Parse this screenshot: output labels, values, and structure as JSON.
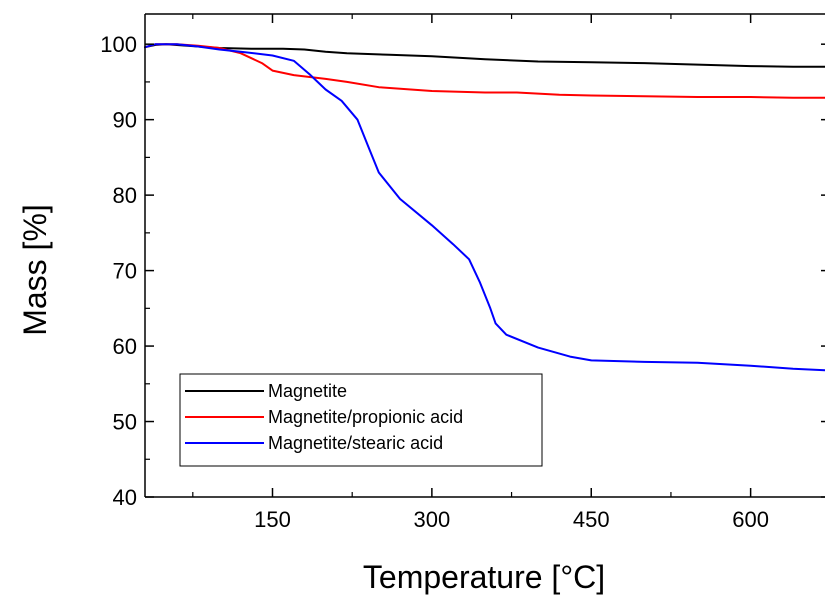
{
  "chart_data": {
    "type": "line",
    "xlabel": "Temperature [°C]",
    "ylabel": "Mass [%]",
    "xlim": [
      30,
      670
    ],
    "ylim": [
      40,
      104
    ],
    "xticks": [
      150,
      300,
      450,
      600
    ],
    "xtick_labels": [
      "150",
      "300",
      "450",
      "600"
    ],
    "yticks": [
      40,
      50,
      60,
      70,
      80,
      90,
      100
    ],
    "ytick_labels": [
      "40",
      "50",
      "60",
      "70",
      "80",
      "90",
      "100"
    ],
    "grid": false,
    "legend_position": "bottom-left",
    "series": [
      {
        "name": "Magnetite",
        "color": "#000000",
        "x": [
          30,
          40,
          50,
          70,
          100,
          130,
          160,
          180,
          200,
          220,
          260,
          300,
          350,
          400,
          450,
          500,
          550,
          600,
          640,
          670
        ],
        "y": [
          99.6,
          99.9,
          100,
          99.8,
          99.5,
          99.4,
          99.4,
          99.3,
          99.0,
          98.8,
          98.6,
          98.4,
          98.0,
          97.7,
          97.6,
          97.5,
          97.3,
          97.1,
          97.0,
          97.0
        ]
      },
      {
        "name": "Magnetite/propionic acid",
        "color": "#ff0000",
        "x": [
          30,
          40,
          60,
          80,
          100,
          120,
          140,
          150,
          170,
          200,
          220,
          250,
          300,
          350,
          380,
          420,
          450,
          500,
          550,
          600,
          640,
          670
        ],
        "y": [
          99.6,
          100,
          100,
          99.8,
          99.5,
          98.8,
          97.5,
          96.5,
          95.9,
          95.4,
          95.0,
          94.3,
          93.8,
          93.6,
          93.6,
          93.3,
          93.2,
          93.1,
          93.0,
          93.0,
          92.9,
          92.9
        ]
      },
      {
        "name": "Magnetite/stearic acid",
        "color": "#0000ff",
        "x": [
          30,
          40,
          60,
          80,
          100,
          120,
          150,
          170,
          185,
          200,
          215,
          230,
          240,
          250,
          270,
          300,
          320,
          335,
          345,
          355,
          360,
          370,
          400,
          430,
          450,
          500,
          550,
          600,
          640,
          670
        ],
        "y": [
          99.6,
          100,
          100,
          99.7,
          99.3,
          99.0,
          98.5,
          97.8,
          96.0,
          94.0,
          92.5,
          90.0,
          86.5,
          83.0,
          79.5,
          76.0,
          73.5,
          71.5,
          68.5,
          65.0,
          63.0,
          61.5,
          59.8,
          58.6,
          58.1,
          57.9,
          57.8,
          57.4,
          57.0,
          56.8
        ]
      }
    ]
  }
}
